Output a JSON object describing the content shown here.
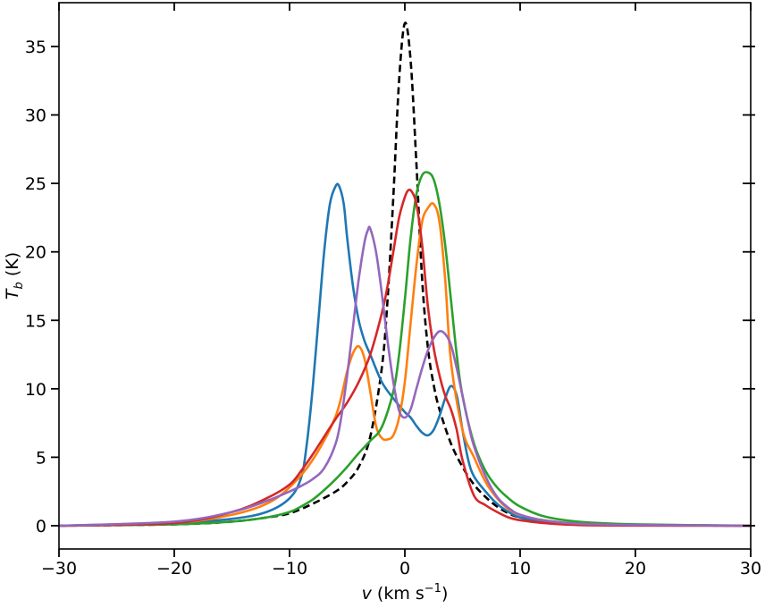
{
  "chart_data": {
    "type": "line",
    "title": "",
    "xlabel": {
      "var": "v",
      "rest": " (km s",
      "sup": "−1",
      "close": ")"
    },
    "ylabel": {
      "var": "T",
      "sub": "b",
      "rest": " (K)"
    },
    "xlim": [
      -30,
      30
    ],
    "ylim": [
      -1.7,
      38.2
    ],
    "xticks": [
      -30,
      -20,
      -10,
      0,
      10,
      20,
      30
    ],
    "xtick_labels": [
      "−30",
      "−20",
      "−10",
      "0",
      "10",
      "20",
      "30"
    ],
    "yticks": [
      0,
      5,
      10,
      15,
      20,
      25,
      30,
      35
    ],
    "ytick_labels": [
      "0",
      "5",
      "10",
      "15",
      "20",
      "25",
      "30",
      "35"
    ],
    "grid": false,
    "legend": "none",
    "series": [
      {
        "color": "#000000",
        "dashed": true,
        "x": [
          -30,
          -20,
          -15,
          -12,
          -10,
          -8,
          -6,
          -5,
          -4,
          -3,
          -2,
          -1.5,
          -1,
          -0.5,
          0,
          0.5,
          1,
          1.5,
          2,
          2.5,
          3,
          4,
          5,
          6,
          7,
          8,
          9,
          10,
          12,
          15,
          20,
          30
        ],
        "y": [
          0,
          0.1,
          0.3,
          0.6,
          0.9,
          1.6,
          2.5,
          3.2,
          4.3,
          6.5,
          11.5,
          16.5,
          24,
          32.5,
          36.7,
          34,
          26.5,
          18,
          13,
          10.3,
          8.5,
          6,
          4.3,
          3,
          2.1,
          1.4,
          0.9,
          0.6,
          0.3,
          0.15,
          0.05,
          0
        ]
      },
      {
        "color": "#1f77b4",
        "x": [
          -30,
          -20,
          -15,
          -12,
          -10,
          -9,
          -8.5,
          -8,
          -7.5,
          -7,
          -6.5,
          -6,
          -5.7,
          -5.3,
          -5,
          -4.5,
          -4,
          -3.5,
          -3,
          -2,
          -1,
          0,
          0.5,
          1,
          1.5,
          2,
          2.5,
          3,
          3.5,
          4,
          4.5,
          5,
          5.5,
          6,
          7,
          8,
          9,
          10,
          12,
          15,
          20,
          30
        ],
        "y": [
          0,
          0.2,
          0.5,
          1,
          2,
          3.5,
          6,
          10,
          15,
          20,
          23.5,
          24.8,
          24.8,
          23.5,
          21,
          17.5,
          15,
          13.5,
          12.5,
          10.5,
          9.3,
          8.3,
          7.9,
          7.3,
          6.8,
          6.6,
          7,
          8,
          9.3,
          10.2,
          9.5,
          7,
          4.8,
          3.6,
          2.5,
          1.6,
          1,
          0.6,
          0.3,
          0.1,
          0.05,
          0
        ]
      },
      {
        "color": "#ff7f0e",
        "x": [
          -30,
          -20,
          -15,
          -12,
          -10,
          -8,
          -6,
          -5,
          -4.5,
          -4,
          -3.5,
          -3,
          -2.5,
          -2,
          -1.5,
          -1,
          -0.5,
          0,
          0.5,
          1,
          1.5,
          2,
          2.5,
          3,
          3.5,
          4,
          5,
          6,
          7,
          8,
          9,
          10,
          12,
          15,
          20,
          30
        ],
        "y": [
          0,
          0.2,
          0.8,
          1.6,
          2.8,
          4.8,
          8,
          11.3,
          12.6,
          13.1,
          12.2,
          9.8,
          7.3,
          6.4,
          6.3,
          6.6,
          7.9,
          10.5,
          14.8,
          19,
          22.2,
          23.2,
          23.5,
          22.2,
          18,
          12,
          7,
          5,
          3.2,
          2,
          1.2,
          0.8,
          0.4,
          0.15,
          0.05,
          0
        ]
      },
      {
        "color": "#2ca02c",
        "x": [
          -30,
          -20,
          -15,
          -12,
          -10,
          -9,
          -8,
          -7,
          -6,
          -5,
          -4,
          -3,
          -2,
          -1,
          -0.5,
          0,
          0.5,
          1,
          1.5,
          2,
          2.5,
          3,
          3.5,
          4,
          4.5,
          5,
          6,
          7,
          8,
          9,
          10,
          12,
          15,
          20,
          30
        ],
        "y": [
          0,
          0.1,
          0.3,
          0.6,
          1,
          1.4,
          1.9,
          2.6,
          3.4,
          4.3,
          5.3,
          6.2,
          7.2,
          9.8,
          12.5,
          16.5,
          21,
          24.2,
          25.6,
          25.8,
          25.3,
          23.5,
          20.5,
          16.5,
          12.5,
          9.5,
          6,
          4,
          2.8,
          2,
          1.4,
          0.7,
          0.3,
          0.1,
          0
        ]
      },
      {
        "color": "#d62728",
        "x": [
          -30,
          -20,
          -15,
          -12,
          -10,
          -9,
          -8,
          -7,
          -6,
          -5,
          -4,
          -3,
          -2,
          -1.5,
          -1,
          -0.5,
          0,
          0.3,
          0.6,
          1,
          1.5,
          2,
          2.5,
          3,
          3.5,
          4,
          4.5,
          5,
          6,
          7,
          8,
          9,
          10,
          12,
          15,
          20,
          30
        ],
        "y": [
          0,
          0.2,
          1,
          2,
          3,
          4,
          5.2,
          6.5,
          7.8,
          9,
          10.5,
          12.5,
          15.5,
          17.5,
          20,
          22.5,
          24,
          24.5,
          24.4,
          23.5,
          20.5,
          16,
          13,
          11,
          9.5,
          8.5,
          7,
          4.8,
          2.2,
          1.5,
          1,
          0.6,
          0.4,
          0.2,
          0.05,
          0.01,
          0
        ]
      },
      {
        "color": "#9467bd",
        "x": [
          -30,
          -20,
          -15,
          -12,
          -10,
          -9,
          -8,
          -7,
          -6,
          -5.5,
          -5,
          -4.5,
          -4,
          -3.5,
          -3.2,
          -3,
          -2.5,
          -2,
          -1.5,
          -1,
          -0.5,
          0,
          0.5,
          1,
          1.5,
          2,
          2.5,
          3,
          3.5,
          4,
          4.5,
          5,
          5.5,
          6,
          7,
          8,
          9,
          10,
          12,
          15,
          20,
          30
        ],
        "y": [
          0,
          0.3,
          1,
          1.8,
          2.5,
          2.9,
          3.4,
          4.2,
          6,
          8,
          11,
          14.5,
          18,
          20.7,
          21.6,
          21.7,
          20,
          17,
          13.5,
          10.5,
          8.4,
          7.9,
          8.5,
          10,
          11.5,
          12.8,
          13.7,
          14.2,
          14,
          13.2,
          11.5,
          9.5,
          7.5,
          5.8,
          3.6,
          2.1,
          1.3,
          0.8,
          0.4,
          0.15,
          0.05,
          0
        ]
      }
    ]
  }
}
